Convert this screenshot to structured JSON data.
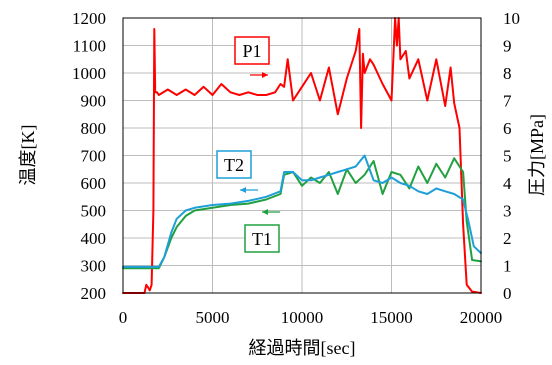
{
  "chart_data": {
    "type": "line",
    "xlabel": "経過時間[sec]",
    "ylabel_left": "温度[K]",
    "ylabel_right": "圧力[MPa]",
    "xlim": [
      0,
      20000
    ],
    "ylim_left": [
      200,
      1200
    ],
    "ylim_right": [
      0,
      10
    ],
    "x_ticks": [
      "0",
      "5000",
      "10000",
      "15000",
      "20000"
    ],
    "y_left_ticks": [
      "200",
      "300",
      "400",
      "500",
      "600",
      "700",
      "800",
      "900",
      "1000",
      "1100",
      "1200"
    ],
    "y_right_ticks": [
      "0",
      "1",
      "2",
      "3",
      "4",
      "5",
      "6",
      "7",
      "8",
      "9",
      "10"
    ],
    "grid": true,
    "series": [
      {
        "name": "P1",
        "axis": "right",
        "color": "#ff0000",
        "x": [
          0,
          1000,
          1200,
          1300,
          1400,
          1500,
          1600,
          1700,
          1750,
          1800,
          1900,
          2000,
          2500,
          3000,
          3500,
          4000,
          4500,
          5000,
          5500,
          6000,
          6500,
          7000,
          7500,
          8000,
          8500,
          8800,
          9000,
          9200,
          9500,
          10000,
          10500,
          11000,
          11500,
          12000,
          12500,
          13000,
          13200,
          13300,
          13400,
          13500,
          13800,
          14000,
          14500,
          15000,
          15200,
          15300,
          15400,
          15500,
          15800,
          16000,
          16500,
          17000,
          17500,
          18000,
          18300,
          18500,
          18800,
          19000,
          19200,
          19500,
          20000
        ],
        "values": [
          0,
          0,
          0,
          0.3,
          0.2,
          0.1,
          0.3,
          3,
          9.6,
          7.3,
          7.3,
          7.2,
          7.4,
          7.2,
          7.4,
          7.2,
          7.5,
          7.2,
          7.6,
          7.3,
          7.2,
          7.3,
          7.2,
          7.2,
          7.3,
          7.6,
          7.5,
          8.5,
          7.0,
          7.5,
          8.0,
          7.0,
          8.2,
          6.5,
          7.8,
          8.8,
          9.6,
          6.0,
          8.7,
          8.0,
          8.5,
          8.3,
          7.6,
          7.0,
          10,
          9.0,
          10,
          8.5,
          8.8,
          7.8,
          8.5,
          7.0,
          8.5,
          6.8,
          8.2,
          6.9,
          6.0,
          2.5,
          0.3,
          0.05,
          0
        ]
      },
      {
        "name": "T1",
        "axis": "left",
        "color": "#22a040",
        "x": [
          0,
          1000,
          2000,
          2300,
          2700,
          3000,
          3500,
          4000,
          5000,
          6000,
          7000,
          8000,
          8800,
          9000,
          9500,
          10000,
          10500,
          11000,
          11500,
          12000,
          12500,
          13000,
          13500,
          14000,
          14500,
          15000,
          15500,
          16000,
          16500,
          17000,
          17500,
          18000,
          18500,
          19000,
          19200,
          19500,
          20000
        ],
        "values": [
          290,
          290,
          290,
          330,
          400,
          440,
          480,
          500,
          510,
          520,
          525,
          540,
          560,
          630,
          640,
          590,
          620,
          600,
          640,
          560,
          650,
          600,
          630,
          680,
          560,
          640,
          630,
          580,
          660,
          600,
          670,
          620,
          690,
          640,
          460,
          320,
          315
        ]
      },
      {
        "name": "T2",
        "axis": "left",
        "color": "#1e9fd8",
        "x": [
          0,
          1000,
          2000,
          2300,
          2700,
          3000,
          3500,
          4000,
          5000,
          6000,
          7000,
          8000,
          8800,
          9000,
          9500,
          10000,
          10500,
          11000,
          11500,
          12000,
          12500,
          13000,
          13500,
          14000,
          14500,
          15000,
          15500,
          16000,
          16500,
          17000,
          17500,
          18000,
          18500,
          19000,
          19300,
          19600,
          20000
        ],
        "values": [
          295,
          295,
          295,
          330,
          420,
          470,
          500,
          510,
          520,
          525,
          535,
          550,
          570,
          640,
          640,
          610,
          610,
          620,
          630,
          640,
          650,
          660,
          700,
          610,
          600,
          620,
          600,
          590,
          570,
          560,
          580,
          570,
          560,
          540,
          460,
          370,
          345
        ]
      }
    ],
    "annotations": [
      {
        "label": "P1",
        "color": "#ff0000"
      },
      {
        "label": "T2",
        "color": "#1e9fd8"
      },
      {
        "label": "T1",
        "color": "#22a040"
      }
    ]
  }
}
